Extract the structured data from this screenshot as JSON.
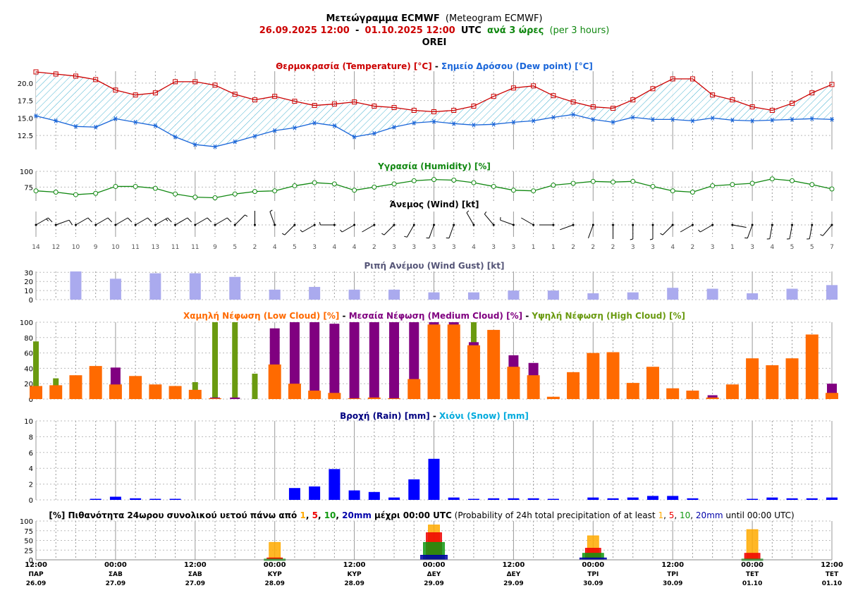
{
  "header": {
    "title_gr": "Μετεώγραμμα ECMWF",
    "title_en": "(Meteogram ECMWF)",
    "date_from": "26.09.2025 12:00",
    "dash": "-",
    "date_to": "01.10.2025 12:00",
    "utc": "UTC",
    "step_gr": "ανά 3 ώρες",
    "step_en": "(per 3 hours)",
    "location": "OREI"
  },
  "colors": {
    "temperature": "#cc0000",
    "dewpoint": "#1a66d9",
    "humidity": "#118811",
    "gust": "#aaaaee",
    "low_cloud": "#ff6a00",
    "medium_cloud": "#800080",
    "high_cloud": "#6a9a10",
    "rain": "#0000ff",
    "snow": "#00aadd",
    "p1": "#ffaa00",
    "p5": "#ee0000",
    "p10": "#119911",
    "p20": "#0000aa"
  },
  "x_axis": {
    "labels": [
      {
        "time": "12:00",
        "day": "ΠΑΡ",
        "date": "26.09"
      },
      {
        "time": "00:00",
        "day": "ΣΑΒ",
        "date": "27.09"
      },
      {
        "time": "12:00",
        "day": "ΣΑΒ",
        "date": "27.09"
      },
      {
        "time": "00:00",
        "day": "ΚΥΡ",
        "date": "28.09"
      },
      {
        "time": "12:00",
        "day": "ΚΥΡ",
        "date": "28.09"
      },
      {
        "time": "00:00",
        "day": "ΔΕΥ",
        "date": "29.09"
      },
      {
        "time": "12:00",
        "day": "ΔΕΥ",
        "date": "29.09"
      },
      {
        "time": "00:00",
        "day": "ΤΡΙ",
        "date": "30.09"
      },
      {
        "time": "12:00",
        "day": "ΤΡΙ",
        "date": "30.09"
      },
      {
        "time": "00:00",
        "day": "ΤΕΤ",
        "date": "01.10"
      },
      {
        "time": "12:00",
        "day": "ΤΕΤ",
        "date": "01.10"
      }
    ]
  },
  "chart_data": [
    {
      "type": "line",
      "id": "temperature",
      "title_parts": [
        {
          "text": "Θερμοκρασία (Temperature) [°C]",
          "color": "#cc0000"
        },
        {
          "text": " - ",
          "color": "#000000"
        },
        {
          "text": "Σημείο Δρόσου (Dew point) [°C]",
          "color": "#1a66d9"
        }
      ],
      "yticks": [
        "12.5",
        "15.0",
        "17.5",
        "20.0"
      ],
      "ylim": [
        10.5,
        21.7
      ],
      "series": [
        {
          "name": "Θερμοκρασία (Temperature) [°C]",
          "values": [
            21.6,
            21.3,
            21.0,
            20.5,
            19.0,
            18.3,
            18.6,
            20.2,
            20.2,
            19.7,
            18.4,
            17.6,
            18.1,
            17.4,
            16.8,
            17.0,
            17.3,
            16.7,
            16.5,
            16.1,
            15.9,
            16.1,
            16.7,
            18.1,
            19.3,
            19.6,
            18.2,
            17.3,
            16.6,
            16.4,
            17.6,
            19.2,
            20.6,
            20.6,
            18.3,
            17.6,
            16.6,
            16.1,
            17.1,
            18.6,
            19.8
          ]
        },
        {
          "name": "Σημείο Δρόσου (Dew point) [°C]",
          "values": [
            15.3,
            14.6,
            13.8,
            13.7,
            14.9,
            14.4,
            13.9,
            12.3,
            11.2,
            10.9,
            11.6,
            12.4,
            13.2,
            13.6,
            14.3,
            13.9,
            12.3,
            12.8,
            13.7,
            14.3,
            14.5,
            14.2,
            14.0,
            14.1,
            14.4,
            14.6,
            15.1,
            15.5,
            14.8,
            14.4,
            15.1,
            14.8,
            14.8,
            14.6,
            15.0,
            14.7,
            14.6,
            14.7,
            14.8,
            14.9,
            14.8
          ]
        }
      ]
    },
    {
      "type": "line",
      "id": "humidity",
      "title_parts": [
        {
          "text": "Υγρασία (Humidity) [%]",
          "color": "#118811"
        }
      ],
      "yticks": [
        "75",
        "100"
      ],
      "ylim": [
        53,
        100
      ],
      "series": [
        {
          "name": "Υγρασία (Humidity) [%]",
          "values": [
            69,
            67,
            63,
            65,
            76,
            76,
            73,
            64,
            59,
            58,
            64,
            68,
            69,
            77,
            82,
            80,
            70,
            75,
            80,
            85,
            87,
            86,
            82,
            76,
            70,
            69,
            78,
            81,
            84,
            83,
            84,
            76,
            69,
            67,
            77,
            79,
            81,
            88,
            85,
            79,
            72
          ]
        }
      ]
    },
    {
      "type": "wind-barbs",
      "id": "wind",
      "title_parts": [
        {
          "text": "Άνεμος (Wind) [kt]",
          "color": "#000000"
        }
      ],
      "speeds": [
        14,
        12,
        10,
        9,
        10,
        11,
        13,
        11,
        11,
        9,
        5,
        2,
        4,
        5,
        3,
        4,
        4,
        2,
        3,
        3,
        3,
        3,
        4,
        3,
        3,
        1,
        1,
        2,
        2,
        2,
        3,
        3,
        4,
        2,
        3,
        1,
        3,
        4,
        5,
        5,
        7
      ],
      "directions_deg": [
        60,
        70,
        60,
        60,
        60,
        60,
        60,
        60,
        60,
        60,
        45,
        0,
        340,
        225,
        240,
        270,
        240,
        240,
        225,
        210,
        200,
        200,
        330,
        320,
        290,
        300,
        270,
        250,
        200,
        180,
        180,
        180,
        225,
        240,
        240,
        100,
        200,
        190,
        190,
        190,
        220
      ]
    },
    {
      "type": "bar",
      "id": "gust",
      "title_parts": [
        {
          "text": "Ριπή Ανέμου (Wind Gust) [kt]",
          "color": "#555577"
        }
      ],
      "yticks": [
        "0",
        "10",
        "20",
        "30"
      ],
      "ylim": [
        0,
        31
      ],
      "step": 6,
      "values": [
        31,
        23,
        29,
        29,
        25,
        11,
        14,
        11,
        11,
        8,
        8,
        10,
        10,
        7,
        8,
        13,
        12,
        7,
        12,
        16
      ]
    },
    {
      "type": "bar",
      "id": "clouds",
      "title_parts": [
        {
          "text": "Χαμηλή Νέφωση (Low Cloud) [%]",
          "color": "#ff6a00"
        },
        {
          "text": " - ",
          "color": "#000000"
        },
        {
          "text": "Μεσαία Νέφωση (Medium Cloud) [%]",
          "color": "#800080"
        },
        {
          "text": " - ",
          "color": "#000000"
        },
        {
          "text": "Υψηλή Νέφωση (High Cloud) [%]",
          "color": "#6a9a10"
        }
      ],
      "yticks": [
        "0",
        "20",
        "40",
        "60",
        "80",
        "100"
      ],
      "ylim": [
        0,
        100
      ],
      "series": [
        {
          "name": "Υψηλή Νέφωση (High Cloud) [%]",
          "values": [
            75,
            27,
            0,
            0,
            0,
            0,
            0,
            0,
            22,
            100,
            100,
            33,
            0,
            0,
            0,
            0,
            0,
            0,
            0,
            0,
            0,
            0,
            100,
            0,
            0,
            0,
            0,
            0,
            0,
            0,
            0,
            0,
            0,
            0,
            0,
            0,
            0,
            0,
            0,
            0,
            0
          ]
        },
        {
          "name": "Μεσαία Νέφωση (Medium Cloud) [%]",
          "values": [
            0,
            0,
            0,
            0,
            41,
            0,
            0,
            0,
            0,
            2,
            2,
            0,
            92,
            100,
            100,
            98,
            100,
            100,
            100,
            100,
            100,
            100,
            74,
            0,
            57,
            47,
            0,
            0,
            0,
            0,
            0,
            0,
            0,
            0,
            5,
            0,
            0,
            0,
            0,
            0,
            20
          ]
        },
        {
          "name": "Χαμηλή Νέφωση (Low Cloud) [%]",
          "values": [
            17,
            18,
            31,
            43,
            19,
            30,
            19,
            17,
            12,
            1,
            0,
            0,
            45,
            20,
            11,
            8,
            1,
            2,
            1,
            26,
            97,
            97,
            70,
            90,
            42,
            31,
            3,
            35,
            60,
            61,
            21,
            42,
            14,
            11,
            2,
            19,
            53,
            44,
            53,
            84,
            8
          ]
        }
      ]
    },
    {
      "type": "bar",
      "id": "precipitation",
      "title_parts": [
        {
          "text": "Βροχή (Rain) [mm]",
          "color": "#000080"
        },
        {
          "text": " - ",
          "color": "#000000"
        },
        {
          "text": "Χιόνι (Snow) [mm]",
          "color": "#00aadd"
        }
      ],
      "yticks": [
        "0",
        "2",
        "4",
        "6",
        "8",
        "10"
      ],
      "ylim": [
        0,
        10
      ],
      "series": [
        {
          "name": "Βροχή (Rain) [mm]",
          "values": [
            0,
            0,
            0,
            0.1,
            0.4,
            0.2,
            0.1,
            0.1,
            0,
            0,
            0,
            0,
            0,
            1.5,
            1.7,
            3.9,
            1.2,
            1.0,
            0.3,
            2.6,
            5.2,
            0.3,
            0.1,
            0.2,
            0.2,
            0.2,
            0.1,
            0,
            0.3,
            0.2,
            0.3,
            0.5,
            0.5,
            0.2,
            0,
            0,
            0.1,
            0.3,
            0.2,
            0.2,
            0.3
          ]
        }
      ]
    },
    {
      "type": "bar",
      "id": "probability",
      "title_parts": [
        {
          "text": "[%] Πιθανότητα 24ωρου συνολικού υετού πάνω από ",
          "color": "#000000",
          "bold": true
        },
        {
          "text": "1",
          "color": "#ffaa00",
          "bold": true
        },
        {
          "text": ", ",
          "color": "#000000",
          "bold": true
        },
        {
          "text": "5",
          "color": "#ee0000",
          "bold": true
        },
        {
          "text": ", ",
          "color": "#000000",
          "bold": true
        },
        {
          "text": "10",
          "color": "#119911",
          "bold": true
        },
        {
          "text": ", ",
          "color": "#000000",
          "bold": true
        },
        {
          "text": "20mm",
          "color": "#0000aa",
          "bold": true
        },
        {
          "text": " μέχρι 00:00 UTC",
          "color": "#000000",
          "bold": true
        },
        {
          "text": " (Probability of 24h total precipitation of at least ",
          "color": "#000000"
        },
        {
          "text": "1",
          "color": "#ffaa00"
        },
        {
          "text": ", ",
          "color": "#000000"
        },
        {
          "text": "5",
          "color": "#ee0000"
        },
        {
          "text": ", ",
          "color": "#000000"
        },
        {
          "text": "10",
          "color": "#119911"
        },
        {
          "text": ", ",
          "color": "#000000"
        },
        {
          "text": "20mm",
          "color": "#0000aa"
        },
        {
          "text": " until 00:00 UTC)",
          "color": "#000000"
        }
      ],
      "yticks": [
        "0",
        "25",
        "50",
        "75",
        "100"
      ],
      "ylim": [
        0,
        100
      ],
      "categories": [
        "28.09 00:00",
        "29.09 00:00",
        "30.09 00:00",
        "01.10 00:00"
      ],
      "category_index": [
        12,
        20,
        28,
        36
      ],
      "series": [
        {
          "name": "1",
          "values": [
            45,
            90,
            62,
            78
          ]
        },
        {
          "name": "5",
          "values": [
            5,
            70,
            30,
            17
          ]
        },
        {
          "name": "10",
          "values": [
            2,
            45,
            17,
            2
          ]
        },
        {
          "name": "20mm",
          "values": [
            0,
            12,
            5,
            0
          ]
        }
      ]
    }
  ]
}
